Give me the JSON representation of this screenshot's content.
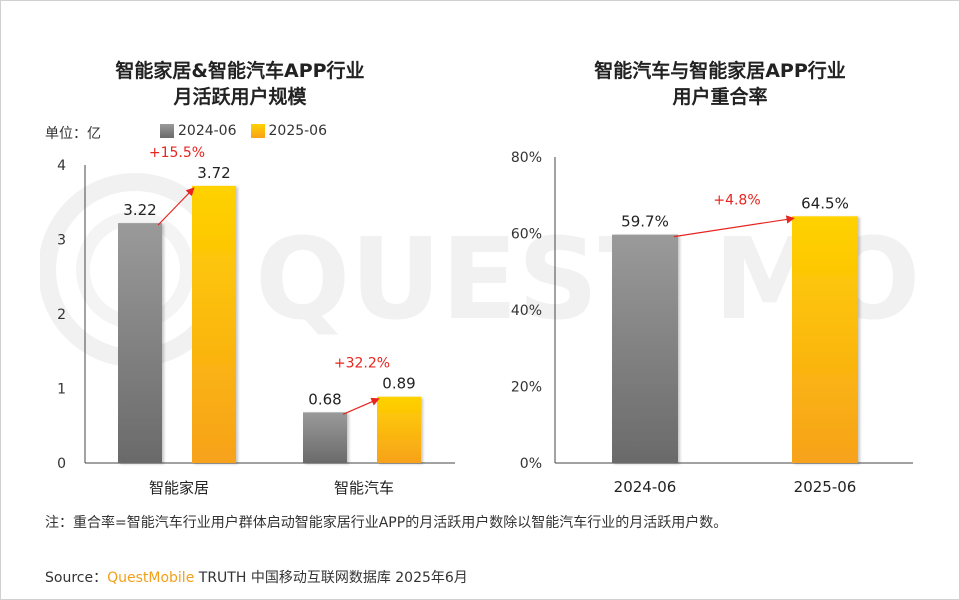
{
  "chart_data": [
    {
      "type": "bar",
      "title": [
        "智能家居&智能汽车APP行业",
        "月活跃用户规模"
      ],
      "unit_label": "单位：亿",
      "categories": [
        "智能家居",
        "智能汽车"
      ],
      "series": [
        {
          "name": "2024-06",
          "values": [
            3.22,
            0.68
          ],
          "labels": [
            "3.22",
            "0.68"
          ]
        },
        {
          "name": "2025-06",
          "values": [
            3.72,
            0.89
          ],
          "labels": [
            "3.72",
            "0.89"
          ]
        }
      ],
      "growth": [
        "+15.5%",
        "+32.2%"
      ],
      "ylim": [
        0,
        4
      ],
      "yticks": [
        0,
        1,
        2,
        3,
        4
      ],
      "ytick_labels": [
        "0",
        "1",
        "2",
        "3",
        "4"
      ],
      "legend": "top"
    },
    {
      "type": "bar",
      "title": [
        "智能汽车与智能家居APP行业",
        "用户重合率"
      ],
      "categories": [
        "2024-06",
        "2025-06"
      ],
      "values": [
        59.7,
        64.5
      ],
      "labels": [
        "59.7%",
        "64.5%"
      ],
      "growth": "+4.8%",
      "ylim": [
        0,
        80
      ],
      "yticks": [
        0,
        20,
        40,
        60,
        80
      ],
      "ytick_labels": [
        "0%",
        "20%",
        "40%",
        "60%",
        "80%"
      ]
    }
  ],
  "note": "注：重合率=智能汽车行业用户群体启动智能家居行业APP的月活跃用户数除以智能汽车行业的月活跃用户数。",
  "source": {
    "prefix": "Source：",
    "brand": "QuestMobile",
    "rest": " TRUTH 中国移动互联网数据库 2025年6月"
  },
  "watermark": "QUEST MOBILE",
  "colors": {
    "gray_top": "#9a9a9a",
    "gray_bottom": "#6a6a6a",
    "gold_top": "#ffd200",
    "gold_bottom": "#f7a21b",
    "growth": "#e8251f"
  }
}
